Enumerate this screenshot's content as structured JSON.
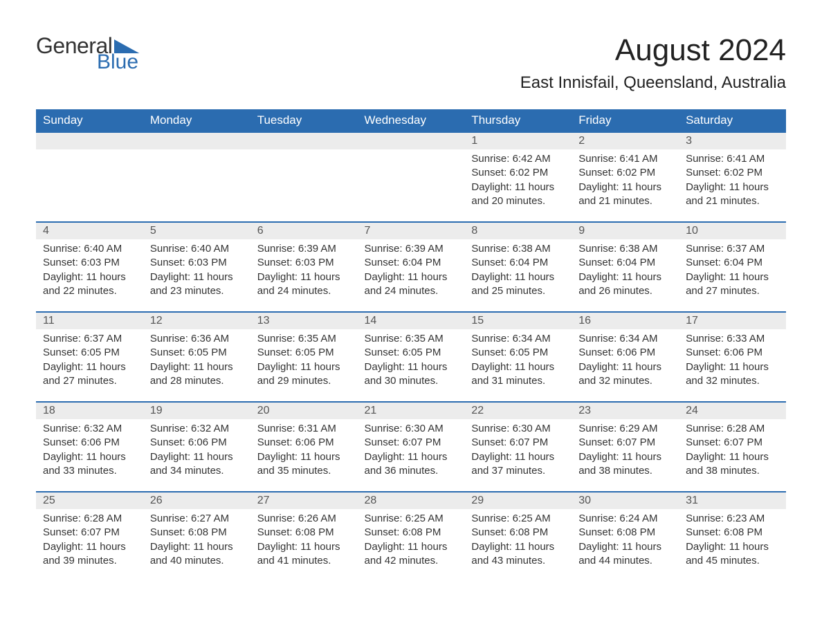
{
  "logo": {
    "text1": "General",
    "text2": "Blue"
  },
  "title": "August 2024",
  "location": "East Innisfail, Queensland, Australia",
  "colors": {
    "header_bg": "#2b6cb0",
    "header_text": "#ffffff",
    "daynum_bg": "#ececec",
    "daynum_text": "#555555",
    "body_text": "#333333",
    "rule": "#2b6cb0"
  },
  "columns": [
    "Sunday",
    "Monday",
    "Tuesday",
    "Wednesday",
    "Thursday",
    "Friday",
    "Saturday"
  ],
  "weeks": [
    [
      null,
      null,
      null,
      null,
      {
        "day": "1",
        "sunrise": "Sunrise: 6:42 AM",
        "sunset": "Sunset: 6:02 PM",
        "daylight1": "Daylight: 11 hours",
        "daylight2": "and 20 minutes."
      },
      {
        "day": "2",
        "sunrise": "Sunrise: 6:41 AM",
        "sunset": "Sunset: 6:02 PM",
        "daylight1": "Daylight: 11 hours",
        "daylight2": "and 21 minutes."
      },
      {
        "day": "3",
        "sunrise": "Sunrise: 6:41 AM",
        "sunset": "Sunset: 6:02 PM",
        "daylight1": "Daylight: 11 hours",
        "daylight2": "and 21 minutes."
      }
    ],
    [
      {
        "day": "4",
        "sunrise": "Sunrise: 6:40 AM",
        "sunset": "Sunset: 6:03 PM",
        "daylight1": "Daylight: 11 hours",
        "daylight2": "and 22 minutes."
      },
      {
        "day": "5",
        "sunrise": "Sunrise: 6:40 AM",
        "sunset": "Sunset: 6:03 PM",
        "daylight1": "Daylight: 11 hours",
        "daylight2": "and 23 minutes."
      },
      {
        "day": "6",
        "sunrise": "Sunrise: 6:39 AM",
        "sunset": "Sunset: 6:03 PM",
        "daylight1": "Daylight: 11 hours",
        "daylight2": "and 24 minutes."
      },
      {
        "day": "7",
        "sunrise": "Sunrise: 6:39 AM",
        "sunset": "Sunset: 6:04 PM",
        "daylight1": "Daylight: 11 hours",
        "daylight2": "and 24 minutes."
      },
      {
        "day": "8",
        "sunrise": "Sunrise: 6:38 AM",
        "sunset": "Sunset: 6:04 PM",
        "daylight1": "Daylight: 11 hours",
        "daylight2": "and 25 minutes."
      },
      {
        "day": "9",
        "sunrise": "Sunrise: 6:38 AM",
        "sunset": "Sunset: 6:04 PM",
        "daylight1": "Daylight: 11 hours",
        "daylight2": "and 26 minutes."
      },
      {
        "day": "10",
        "sunrise": "Sunrise: 6:37 AM",
        "sunset": "Sunset: 6:04 PM",
        "daylight1": "Daylight: 11 hours",
        "daylight2": "and 27 minutes."
      }
    ],
    [
      {
        "day": "11",
        "sunrise": "Sunrise: 6:37 AM",
        "sunset": "Sunset: 6:05 PM",
        "daylight1": "Daylight: 11 hours",
        "daylight2": "and 27 minutes."
      },
      {
        "day": "12",
        "sunrise": "Sunrise: 6:36 AM",
        "sunset": "Sunset: 6:05 PM",
        "daylight1": "Daylight: 11 hours",
        "daylight2": "and 28 minutes."
      },
      {
        "day": "13",
        "sunrise": "Sunrise: 6:35 AM",
        "sunset": "Sunset: 6:05 PM",
        "daylight1": "Daylight: 11 hours",
        "daylight2": "and 29 minutes."
      },
      {
        "day": "14",
        "sunrise": "Sunrise: 6:35 AM",
        "sunset": "Sunset: 6:05 PM",
        "daylight1": "Daylight: 11 hours",
        "daylight2": "and 30 minutes."
      },
      {
        "day": "15",
        "sunrise": "Sunrise: 6:34 AM",
        "sunset": "Sunset: 6:05 PM",
        "daylight1": "Daylight: 11 hours",
        "daylight2": "and 31 minutes."
      },
      {
        "day": "16",
        "sunrise": "Sunrise: 6:34 AM",
        "sunset": "Sunset: 6:06 PM",
        "daylight1": "Daylight: 11 hours",
        "daylight2": "and 32 minutes."
      },
      {
        "day": "17",
        "sunrise": "Sunrise: 6:33 AM",
        "sunset": "Sunset: 6:06 PM",
        "daylight1": "Daylight: 11 hours",
        "daylight2": "and 32 minutes."
      }
    ],
    [
      {
        "day": "18",
        "sunrise": "Sunrise: 6:32 AM",
        "sunset": "Sunset: 6:06 PM",
        "daylight1": "Daylight: 11 hours",
        "daylight2": "and 33 minutes."
      },
      {
        "day": "19",
        "sunrise": "Sunrise: 6:32 AM",
        "sunset": "Sunset: 6:06 PM",
        "daylight1": "Daylight: 11 hours",
        "daylight2": "and 34 minutes."
      },
      {
        "day": "20",
        "sunrise": "Sunrise: 6:31 AM",
        "sunset": "Sunset: 6:06 PM",
        "daylight1": "Daylight: 11 hours",
        "daylight2": "and 35 minutes."
      },
      {
        "day": "21",
        "sunrise": "Sunrise: 6:30 AM",
        "sunset": "Sunset: 6:07 PM",
        "daylight1": "Daylight: 11 hours",
        "daylight2": "and 36 minutes."
      },
      {
        "day": "22",
        "sunrise": "Sunrise: 6:30 AM",
        "sunset": "Sunset: 6:07 PM",
        "daylight1": "Daylight: 11 hours",
        "daylight2": "and 37 minutes."
      },
      {
        "day": "23",
        "sunrise": "Sunrise: 6:29 AM",
        "sunset": "Sunset: 6:07 PM",
        "daylight1": "Daylight: 11 hours",
        "daylight2": "and 38 minutes."
      },
      {
        "day": "24",
        "sunrise": "Sunrise: 6:28 AM",
        "sunset": "Sunset: 6:07 PM",
        "daylight1": "Daylight: 11 hours",
        "daylight2": "and 38 minutes."
      }
    ],
    [
      {
        "day": "25",
        "sunrise": "Sunrise: 6:28 AM",
        "sunset": "Sunset: 6:07 PM",
        "daylight1": "Daylight: 11 hours",
        "daylight2": "and 39 minutes."
      },
      {
        "day": "26",
        "sunrise": "Sunrise: 6:27 AM",
        "sunset": "Sunset: 6:08 PM",
        "daylight1": "Daylight: 11 hours",
        "daylight2": "and 40 minutes."
      },
      {
        "day": "27",
        "sunrise": "Sunrise: 6:26 AM",
        "sunset": "Sunset: 6:08 PM",
        "daylight1": "Daylight: 11 hours",
        "daylight2": "and 41 minutes."
      },
      {
        "day": "28",
        "sunrise": "Sunrise: 6:25 AM",
        "sunset": "Sunset: 6:08 PM",
        "daylight1": "Daylight: 11 hours",
        "daylight2": "and 42 minutes."
      },
      {
        "day": "29",
        "sunrise": "Sunrise: 6:25 AM",
        "sunset": "Sunset: 6:08 PM",
        "daylight1": "Daylight: 11 hours",
        "daylight2": "and 43 minutes."
      },
      {
        "day": "30",
        "sunrise": "Sunrise: 6:24 AM",
        "sunset": "Sunset: 6:08 PM",
        "daylight1": "Daylight: 11 hours",
        "daylight2": "and 44 minutes."
      },
      {
        "day": "31",
        "sunrise": "Sunrise: 6:23 AM",
        "sunset": "Sunset: 6:08 PM",
        "daylight1": "Daylight: 11 hours",
        "daylight2": "and 45 minutes."
      }
    ]
  ]
}
